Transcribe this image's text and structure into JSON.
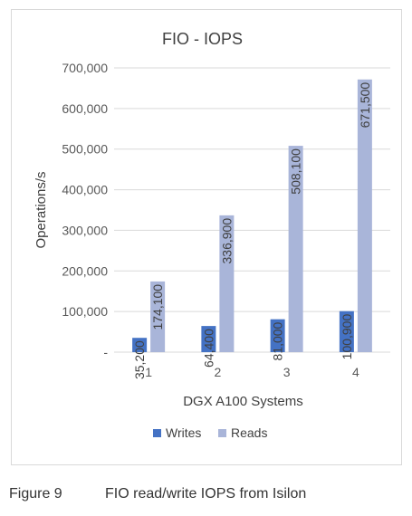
{
  "chart_data": {
    "type": "bar",
    "title": "FIO - IOPS",
    "xlabel": "DGX A100 Systems",
    "ylabel": "Operations/s",
    "categories": [
      "1",
      "2",
      "3",
      "4"
    ],
    "ylim": [
      0,
      700000
    ],
    "yticks": [
      0,
      100000,
      200000,
      300000,
      400000,
      500000,
      600000,
      700000
    ],
    "ytick_labels": [
      "-",
      "100,000",
      "200,000",
      "300,000",
      "400,000",
      "500,000",
      "600,000",
      "700,000"
    ],
    "grid": true,
    "legend": "bottom",
    "series": [
      {
        "name": "Writes",
        "color": "#4472c4",
        "values": [
          35200,
          64400,
          81000,
          100900
        ],
        "labels": [
          "35,200",
          "64,400",
          "81,000",
          "100,900"
        ]
      },
      {
        "name": "Reads",
        "color": "#a9b5d9",
        "values": [
          174100,
          336900,
          508100,
          671500
        ],
        "labels": [
          "174,100",
          "336,900",
          "508,100",
          "671,500"
        ]
      }
    ]
  },
  "caption": {
    "number": "Figure 9",
    "text": "FIO read/write IOPS from Isilon"
  }
}
